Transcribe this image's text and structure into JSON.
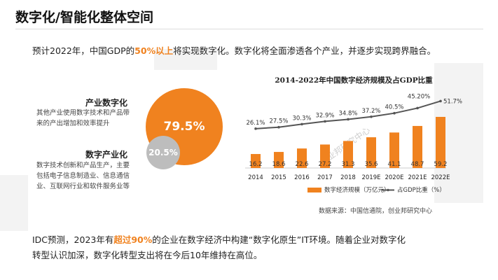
{
  "slide": {
    "title": "数字化/智能化整体空间",
    "intro": {
      "pre": "预计2022年，中国GDP的",
      "highlight": "50%以上",
      "post": "将实现数字化。数字化将全面渗透各个产业，并逐步实现跨界融合。"
    },
    "industry_digitization": {
      "title": "产业数字化",
      "desc_lines": [
        "其他产业使用数字技术和产品带",
        "来的产出增加和效率提升"
      ],
      "value": "79.5%"
    },
    "digital_industrialization": {
      "title": "数字产业化",
      "desc_lines": [
        "数字技术创新和产品生产，主要",
        "包括电子信息制造业、信息通信",
        "业、互联网行业和软件服务业等"
      ],
      "value": "20.5%"
    },
    "source": "数据来源：中国信通院，创业邦研究中心",
    "watermark": "创业邦研究中心",
    "outro": {
      "line1_pre": "IDC预测，2023年有",
      "line1_highlight": "超过90%",
      "line1_post": "的企业在数字经济中构建“数字化原生”IT环境。随着企业对数字化",
      "line2": "转型认识加深，数字化转型支出将在今后10年维持在高位。"
    },
    "colors": {
      "accent": "#F0821F",
      "gray_circle": "#BDBDBD",
      "line": "#555555"
    }
  },
  "chart_data": {
    "type": "bar",
    "title": "2014-2022年中国数字经济规模及占GDP比重",
    "categories": [
      "2014",
      "2015",
      "2016",
      "2017",
      "2018",
      "2019E",
      "2020E",
      "2021E",
      "2022E"
    ],
    "series": [
      {
        "name": "数字经济规模（万亿元）",
        "type": "bar",
        "values": [
          16.2,
          18.6,
          22.6,
          27.2,
          31.3,
          35.6,
          41.1,
          48.7,
          59.2
        ],
        "labels": [
          "16.2",
          "18.6",
          "22.6",
          "27.2",
          "31.3",
          "35.6",
          "41.1",
          "48.7",
          "59.2"
        ]
      },
      {
        "name": "占GDP比重（%）",
        "type": "line",
        "values": [
          26.1,
          27.5,
          30.3,
          32.9,
          34.8,
          37.2,
          40.5,
          45.2,
          51.7
        ],
        "labels": [
          "26.1%",
          "27.5%",
          "30.3%",
          "32.9%",
          "34.8%",
          "37.2%",
          "40.5%",
          "45.20%",
          "51.7%"
        ]
      }
    ],
    "legend_position": "bottom"
  }
}
